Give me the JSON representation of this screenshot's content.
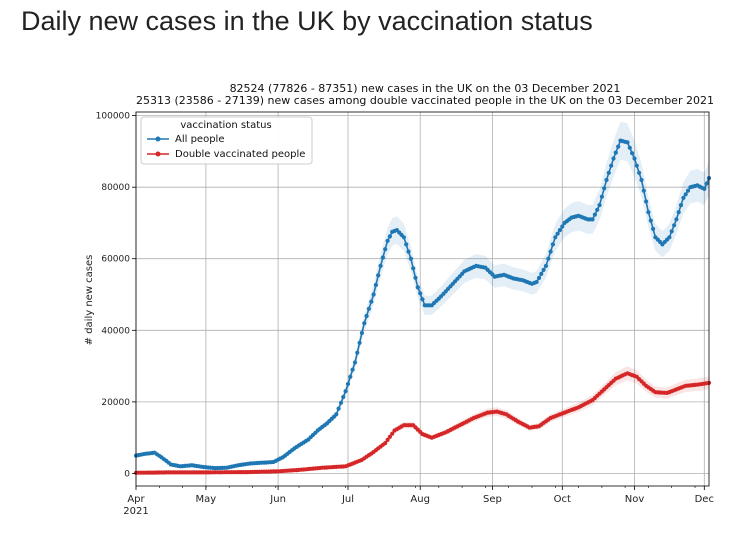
{
  "page": {
    "title": "Daily new cases in the UK by vaccination status"
  },
  "chart_data": {
    "type": "line",
    "title": "82524 (77826 - 87351) new cases in the UK on the 03 December 2021",
    "subtitle": "25313 (23586 - 27139) new cases among double vaccinated people in the UK on the 03 December 2021",
    "xlabel": "",
    "ylabel": "# daily new cases",
    "xlim": [
      "2021-04-01",
      "2021-12-03"
    ],
    "ylim": [
      -3500,
      101000
    ],
    "yticks": [
      0,
      20000,
      40000,
      60000,
      80000,
      100000
    ],
    "xticks": [
      {
        "date": "2021-04-01",
        "label": "Apr",
        "sublabel": "2021"
      },
      {
        "date": "2021-05-01",
        "label": "May"
      },
      {
        "date": "2021-06-01",
        "label": "Jun"
      },
      {
        "date": "2021-07-01",
        "label": "Jul"
      },
      {
        "date": "2021-08-01",
        "label": "Aug"
      },
      {
        "date": "2021-09-01",
        "label": "Sep"
      },
      {
        "date": "2021-10-01",
        "label": "Oct"
      },
      {
        "date": "2021-11-01",
        "label": "Nov"
      },
      {
        "date": "2021-12-01",
        "label": "Dec"
      }
    ],
    "grid": true,
    "legend": {
      "title": "vaccination status",
      "placement": "top-left"
    },
    "series": [
      {
        "name": "All people",
        "color": "#1f77b4",
        "band_pct": 0.057,
        "points": [
          [
            "2021-04-01",
            5000
          ],
          [
            "2021-04-05",
            5500
          ],
          [
            "2021-04-09",
            5800
          ],
          [
            "2021-04-12",
            4500
          ],
          [
            "2021-04-16",
            2500
          ],
          [
            "2021-04-20",
            2000
          ],
          [
            "2021-04-25",
            2300
          ],
          [
            "2021-04-30",
            1800
          ],
          [
            "2021-05-05",
            1500
          ],
          [
            "2021-05-10",
            1600
          ],
          [
            "2021-05-15",
            2300
          ],
          [
            "2021-05-20",
            2800
          ],
          [
            "2021-05-25",
            3000
          ],
          [
            "2021-05-30",
            3200
          ],
          [
            "2021-06-03",
            4500
          ],
          [
            "2021-06-08",
            7000
          ],
          [
            "2021-06-14",
            9500
          ],
          [
            "2021-06-18",
            12000
          ],
          [
            "2021-06-22",
            14000
          ],
          [
            "2021-06-26",
            16500
          ],
          [
            "2021-06-30",
            23000
          ],
          [
            "2021-07-04",
            31000
          ],
          [
            "2021-07-08",
            42000
          ],
          [
            "2021-07-12",
            50000
          ],
          [
            "2021-07-15",
            58000
          ],
          [
            "2021-07-18",
            65000
          ],
          [
            "2021-07-20",
            67500
          ],
          [
            "2021-07-22",
            68000
          ],
          [
            "2021-07-25",
            66000
          ],
          [
            "2021-07-28",
            60000
          ],
          [
            "2021-07-31",
            52000
          ],
          [
            "2021-08-03",
            47000
          ],
          [
            "2021-08-06",
            47000
          ],
          [
            "2021-08-10",
            49500
          ],
          [
            "2021-08-15",
            53000
          ],
          [
            "2021-08-20",
            56500
          ],
          [
            "2021-08-25",
            58000
          ],
          [
            "2021-08-29",
            57500
          ],
          [
            "2021-09-02",
            55000
          ],
          [
            "2021-09-06",
            55500
          ],
          [
            "2021-09-10",
            54500
          ],
          [
            "2021-09-14",
            54000
          ],
          [
            "2021-09-18",
            53000
          ],
          [
            "2021-09-20",
            53500
          ],
          [
            "2021-09-24",
            58000
          ],
          [
            "2021-09-28",
            66000
          ],
          [
            "2021-10-02",
            70000
          ],
          [
            "2021-10-05",
            71500
          ],
          [
            "2021-10-08",
            72000
          ],
          [
            "2021-10-12",
            71000
          ],
          [
            "2021-10-14",
            71000
          ],
          [
            "2021-10-17",
            75000
          ],
          [
            "2021-10-20",
            82000
          ],
          [
            "2021-10-23",
            88000
          ],
          [
            "2021-10-26",
            93000
          ],
          [
            "2021-10-29",
            92500
          ],
          [
            "2021-11-01",
            88000
          ],
          [
            "2021-11-04",
            82000
          ],
          [
            "2021-11-07",
            73000
          ],
          [
            "2021-11-10",
            66000
          ],
          [
            "2021-11-13",
            64000
          ],
          [
            "2021-11-16",
            66000
          ],
          [
            "2021-11-19",
            71000
          ],
          [
            "2021-11-22",
            77000
          ],
          [
            "2021-11-25",
            80000
          ],
          [
            "2021-11-28",
            80500
          ],
          [
            "2021-12-01",
            79500
          ],
          [
            "2021-12-03",
            82524
          ]
        ]
      },
      {
        "name": "Double vaccinated people",
        "color": "#d62728",
        "band_pct": 0.07,
        "points": [
          [
            "2021-04-01",
            200
          ],
          [
            "2021-04-15",
            300
          ],
          [
            "2021-05-01",
            300
          ],
          [
            "2021-05-20",
            400
          ],
          [
            "2021-06-01",
            600
          ],
          [
            "2021-06-10",
            1000
          ],
          [
            "2021-06-20",
            1600
          ],
          [
            "2021-06-30",
            2000
          ],
          [
            "2021-07-07",
            3800
          ],
          [
            "2021-07-12",
            6000
          ],
          [
            "2021-07-17",
            8500
          ],
          [
            "2021-07-21",
            12000
          ],
          [
            "2021-07-25",
            13500
          ],
          [
            "2021-07-29",
            13500
          ],
          [
            "2021-08-02",
            11000
          ],
          [
            "2021-08-06",
            10000
          ],
          [
            "2021-08-12",
            11500
          ],
          [
            "2021-08-18",
            13500
          ],
          [
            "2021-08-24",
            15500
          ],
          [
            "2021-08-30",
            17000
          ],
          [
            "2021-09-03",
            17300
          ],
          [
            "2021-09-07",
            16500
          ],
          [
            "2021-09-12",
            14500
          ],
          [
            "2021-09-17",
            12800
          ],
          [
            "2021-09-21",
            13200
          ],
          [
            "2021-09-26",
            15500
          ],
          [
            "2021-10-02",
            17000
          ],
          [
            "2021-10-08",
            18500
          ],
          [
            "2021-10-14",
            20500
          ],
          [
            "2021-10-19",
            23500
          ],
          [
            "2021-10-24",
            26500
          ],
          [
            "2021-10-29",
            28000
          ],
          [
            "2021-11-02",
            27000
          ],
          [
            "2021-11-06",
            24500
          ],
          [
            "2021-11-10",
            22700
          ],
          [
            "2021-11-15",
            22500
          ],
          [
            "2021-11-19",
            23500
          ],
          [
            "2021-11-23",
            24500
          ],
          [
            "2021-11-28",
            24800
          ],
          [
            "2021-12-03",
            25313
          ]
        ]
      }
    ]
  }
}
